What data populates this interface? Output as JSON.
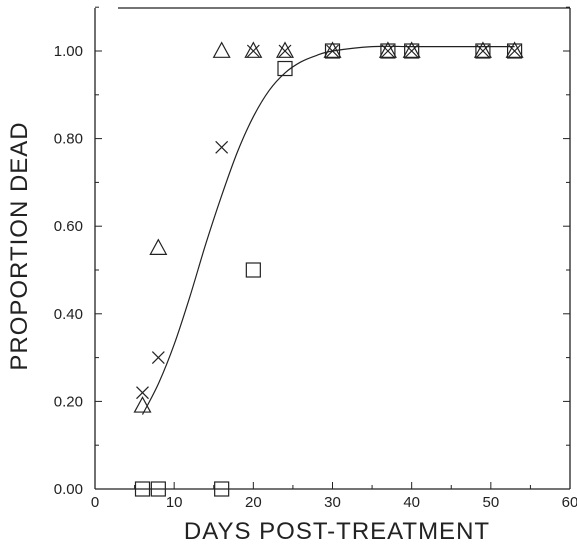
{
  "chart_data": {
    "type": "scatter",
    "xlabel": "DAYS POST-TREATMENT",
    "ylabel": "PROPORTION DEAD",
    "xlim": [
      0,
      60
    ],
    "ylim": [
      0,
      1.1
    ],
    "xticks": [
      0,
      10,
      20,
      30,
      40,
      50,
      60
    ],
    "xtick_labels": [
      "0",
      "10",
      "20",
      "30",
      "40",
      "50",
      "60"
    ],
    "yticks": [
      0,
      0.2,
      0.4,
      0.6,
      0.8,
      1.0
    ],
    "ytick_labels": [
      "0.00",
      "0.20",
      "0.40",
      "0.60",
      "0.80",
      "1.00"
    ],
    "grid": false,
    "series": [
      {
        "marker": "triangle",
        "x": [
          6,
          8,
          16,
          20,
          24,
          30,
          37,
          40,
          49,
          53
        ],
        "y": [
          0.19,
          0.55,
          1.0,
          1.0,
          1.0,
          1.0,
          1.0,
          1.0,
          1.0,
          1.0
        ]
      },
      {
        "marker": "x",
        "x": [
          6,
          8,
          16,
          20,
          24,
          30,
          37,
          40,
          49,
          53
        ],
        "y": [
          0.22,
          0.3,
          0.78,
          1.0,
          1.0,
          1.0,
          1.0,
          1.0,
          1.0,
          1.0
        ]
      },
      {
        "marker": "square",
        "x": [
          6,
          8,
          16,
          20,
          24,
          30,
          37,
          40,
          49,
          53
        ],
        "y": [
          0.0,
          0.0,
          0.0,
          0.5,
          0.96,
          1.0,
          1.0,
          1.0,
          1.0,
          1.0
        ]
      }
    ],
    "fitted_curve": {
      "x": [
        6,
        8,
        10,
        12,
        14,
        16,
        18,
        20,
        22,
        24,
        26,
        28,
        30,
        35,
        40,
        45,
        50,
        53
      ],
      "y": [
        0.17,
        0.24,
        0.33,
        0.44,
        0.56,
        0.67,
        0.77,
        0.85,
        0.91,
        0.95,
        0.975,
        0.99,
        1.0,
        1.01,
        1.01,
        1.01,
        1.01,
        1.01
      ]
    }
  }
}
